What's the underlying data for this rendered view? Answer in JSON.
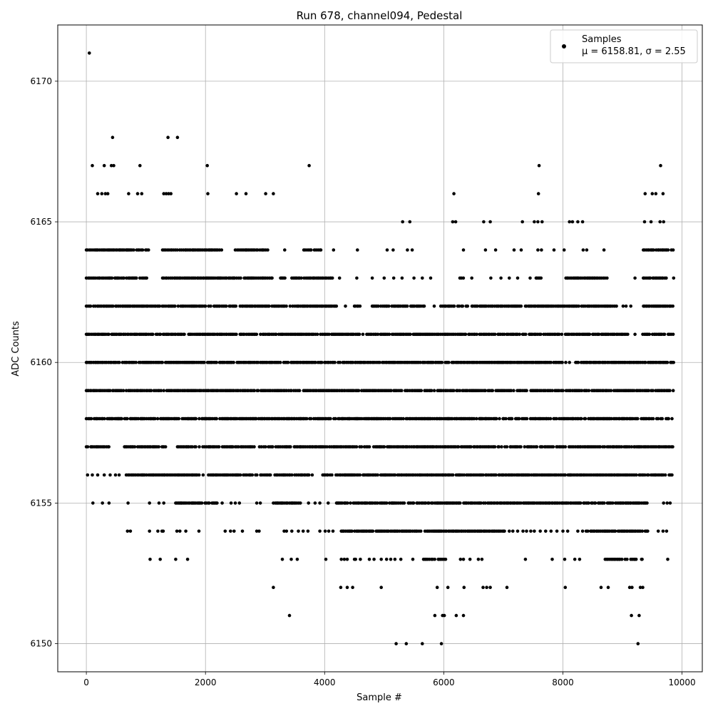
{
  "chart_data": {
    "type": "scatter",
    "title": "Run 678, channel094, Pedestal",
    "xlabel": "Sample #",
    "ylabel": "ADC Counts",
    "xlim": [
      -480,
      10340
    ],
    "ylim": [
      6149,
      6172
    ],
    "x_ticks": [
      0,
      2000,
      4000,
      6000,
      8000,
      10000
    ],
    "y_ticks": [
      6150,
      6155,
      6160,
      6165,
      6170
    ],
    "grid": true,
    "legend_position": "top-right",
    "series": [
      {
        "name": "Samples",
        "stats_label": "μ = 6158.81, σ = 2.55",
        "color": "#000000",
        "marker": "dot",
        "x_range": [
          0,
          9860
        ],
        "levels": [
          6150,
          6151,
          6152,
          6153,
          6154,
          6155,
          6156,
          6157,
          6158,
          6159,
          6160,
          6161,
          6162,
          6163,
          6164,
          6165,
          6166,
          6167,
          6168,
          6171
        ],
        "points": [
          [
            50,
            6171
          ],
          [
            440,
            6168
          ],
          [
            1370,
            6168
          ],
          [
            1530,
            6168
          ],
          [
            100,
            6167
          ],
          [
            300,
            6167
          ],
          [
            420,
            6167
          ],
          [
            460,
            6167
          ],
          [
            900,
            6167
          ],
          [
            2030,
            6167
          ],
          [
            3740,
            6167
          ],
          [
            7600,
            6167
          ],
          [
            9640,
            6167
          ],
          [
            190,
            6166
          ],
          [
            260,
            6166
          ],
          [
            320,
            6166
          ],
          [
            360,
            6166
          ],
          [
            710,
            6166
          ],
          [
            860,
            6166
          ],
          [
            930,
            6166
          ],
          [
            1300,
            6166
          ],
          [
            1340,
            6166
          ],
          [
            1380,
            6166
          ],
          [
            1420,
            6166
          ],
          [
            2040,
            6166
          ],
          [
            2520,
            6166
          ],
          [
            2680,
            6166
          ],
          [
            3010,
            6166
          ],
          [
            3140,
            6166
          ],
          [
            6170,
            6166
          ],
          [
            7590,
            6166
          ],
          [
            9380,
            6166
          ],
          [
            9500,
            6166
          ],
          [
            9560,
            6166
          ],
          [
            9680,
            6166
          ],
          [
            5310,
            6165
          ],
          [
            5430,
            6165
          ],
          [
            6150,
            6165
          ],
          [
            6200,
            6165
          ],
          [
            6670,
            6165
          ],
          [
            6780,
            6165
          ],
          [
            7320,
            6165
          ],
          [
            7520,
            6165
          ],
          [
            7580,
            6165
          ],
          [
            7650,
            6165
          ],
          [
            8110,
            6165
          ],
          [
            8160,
            6165
          ],
          [
            8250,
            6165
          ],
          [
            8330,
            6165
          ],
          [
            9370,
            6165
          ],
          [
            9480,
            6165
          ],
          [
            9630,
            6165
          ],
          [
            9690,
            6165
          ],
          [
            3140,
            6152
          ],
          [
            4270,
            6152
          ],
          [
            4380,
            6152
          ],
          [
            4470,
            6152
          ],
          [
            4950,
            6152
          ],
          [
            5890,
            6152
          ],
          [
            6070,
            6152
          ],
          [
            6340,
            6152
          ],
          [
            6660,
            6152
          ],
          [
            6720,
            6152
          ],
          [
            6780,
            6152
          ],
          [
            7060,
            6152
          ],
          [
            8040,
            6152
          ],
          [
            8640,
            6152
          ],
          [
            8760,
            6152
          ],
          [
            9120,
            6152
          ],
          [
            9160,
            6152
          ],
          [
            9300,
            6152
          ],
          [
            9340,
            6152
          ],
          [
            3410,
            6151
          ],
          [
            5850,
            6151
          ],
          [
            5980,
            6151
          ],
          [
            6010,
            6151
          ],
          [
            6210,
            6151
          ],
          [
            6330,
            6151
          ],
          [
            9150,
            6151
          ],
          [
            9280,
            6151
          ],
          [
            5200,
            6150
          ],
          [
            5370,
            6150
          ],
          [
            5640,
            6150
          ],
          [
            5960,
            6150
          ],
          [
            9260,
            6150
          ]
        ],
        "bands": [
          {
            "y": 6164,
            "segments": [
              [
                0,
                1050
              ],
              [
                1280,
                2280
              ],
              [
                2500,
                3060
              ],
              [
                3650,
                3950
              ]
            ],
            "scattered": [
              3330,
              4150,
              4550,
              5050,
              5150,
              5390,
              5470,
              6330,
              6700,
              6870,
              7180,
              7300,
              7580,
              7640,
              7850,
              8020,
              8340,
              8400,
              8690
            ],
            "extra_segments": [
              [
                9350,
                9860
              ]
            ]
          },
          {
            "y": 6163,
            "segments": [
              [
                0,
                1050
              ],
              [
                1280,
                3140
              ],
              [
                3260,
                3340
              ],
              [
                3450,
                4150
              ],
              [
                6270,
                6350
              ],
              [
                7550,
                7640
              ],
              [
                8050,
                8750
              ],
              [
                9350,
                9860
              ]
            ],
            "scattered": [
              4250,
              4540,
              4800,
              5000,
              5160,
              5300,
              5500,
              5640,
              5780,
              6470,
              6790,
              6960,
              7100,
              7240,
              7450,
              9210
            ]
          },
          {
            "y": 6162,
            "segments": [
              [
                0,
                4200
              ],
              [
                4500,
                4600
              ],
              [
                4800,
                5700
              ],
              [
                5950,
                7300
              ],
              [
                7370,
                8900
              ],
              [
                9340,
                9860
              ]
            ],
            "scattered": [
              4350,
              5840,
              9010,
              9060,
              9140
            ]
          },
          {
            "y": 6161,
            "segments": [
              [
                0,
                9120
              ]
            ],
            "scattered": [
              9210
            ],
            "extra_segments": [
              [
                9340,
                9860
              ]
            ]
          },
          {
            "y": 6160,
            "segments": [
              [
                0,
                9860
              ]
            ],
            "scattered": []
          },
          {
            "y": 6159,
            "segments": [
              [
                0,
                9860
              ]
            ],
            "scattered": []
          },
          {
            "y": 6158,
            "segments": [
              [
                0,
                9860
              ]
            ],
            "scattered": []
          },
          {
            "y": 6157,
            "segments": [
              [
                0,
                380
              ],
              [
                640,
                1350
              ],
              [
                1530,
                9860
              ]
            ],
            "scattered": []
          },
          {
            "y": 6156,
            "segments": [
              [
                670,
                1030
              ],
              [
                1050,
                1900
              ],
              [
                2050,
                3100
              ],
              [
                3150,
                3800
              ],
              [
                3950,
                9860
              ]
            ],
            "scattered": [
              20,
              100,
              190,
              300,
              400,
              490,
              550,
              1960
            ]
          },
          {
            "y": 6155,
            "segments": [
              [
                1500,
                2200
              ],
              [
                3140,
                3600
              ],
              [
                4200,
                9420
              ]
            ],
            "scattered": [
              110,
              270,
              380,
              700,
              1060,
              1220,
              1300,
              1780,
              2280,
              2430,
              2500,
              2570,
              2860,
              2920,
              3730,
              3840,
              3920,
              4060,
              9690,
              9750,
              9800
            ]
          },
          {
            "y": 6154,
            "segments": [
              [
                4280,
                7020
              ],
              [
                8390,
                9430
              ]
            ],
            "scattered": [
              690,
              740,
              1060,
              1200,
              1270,
              1290,
              1520,
              1570,
              1670,
              1890,
              2330,
              2420,
              2480,
              2620,
              2860,
              2900,
              3320,
              3360,
              3450,
              3560,
              3640,
              3720,
              3920,
              4010,
              4070,
              4140,
              7100,
              7160,
              7240,
              7330,
              7390,
              7460,
              7520,
              7620,
              7710,
              7800,
              7900,
              8000,
              8080,
              8250,
              8330,
              9600,
              9680,
              9740
            ]
          },
          {
            "y": 6153,
            "segments": [
              [
                5660,
                6050
              ],
              [
                8710,
                9240
              ]
            ],
            "scattered": [
              1070,
              1240,
              1500,
              1700,
              3290,
              3440,
              3540,
              4020,
              4280,
              4330,
              4380,
              4500,
              4520,
              4600,
              4750,
              4830,
              4950,
              5040,
              5110,
              5180,
              5280,
              5480,
              6280,
              6330,
              6440,
              6580,
              6640,
              7370,
              7820,
              8030,
              8200,
              8280,
              9320,
              9330,
              9760
            ]
          }
        ]
      }
    ]
  }
}
